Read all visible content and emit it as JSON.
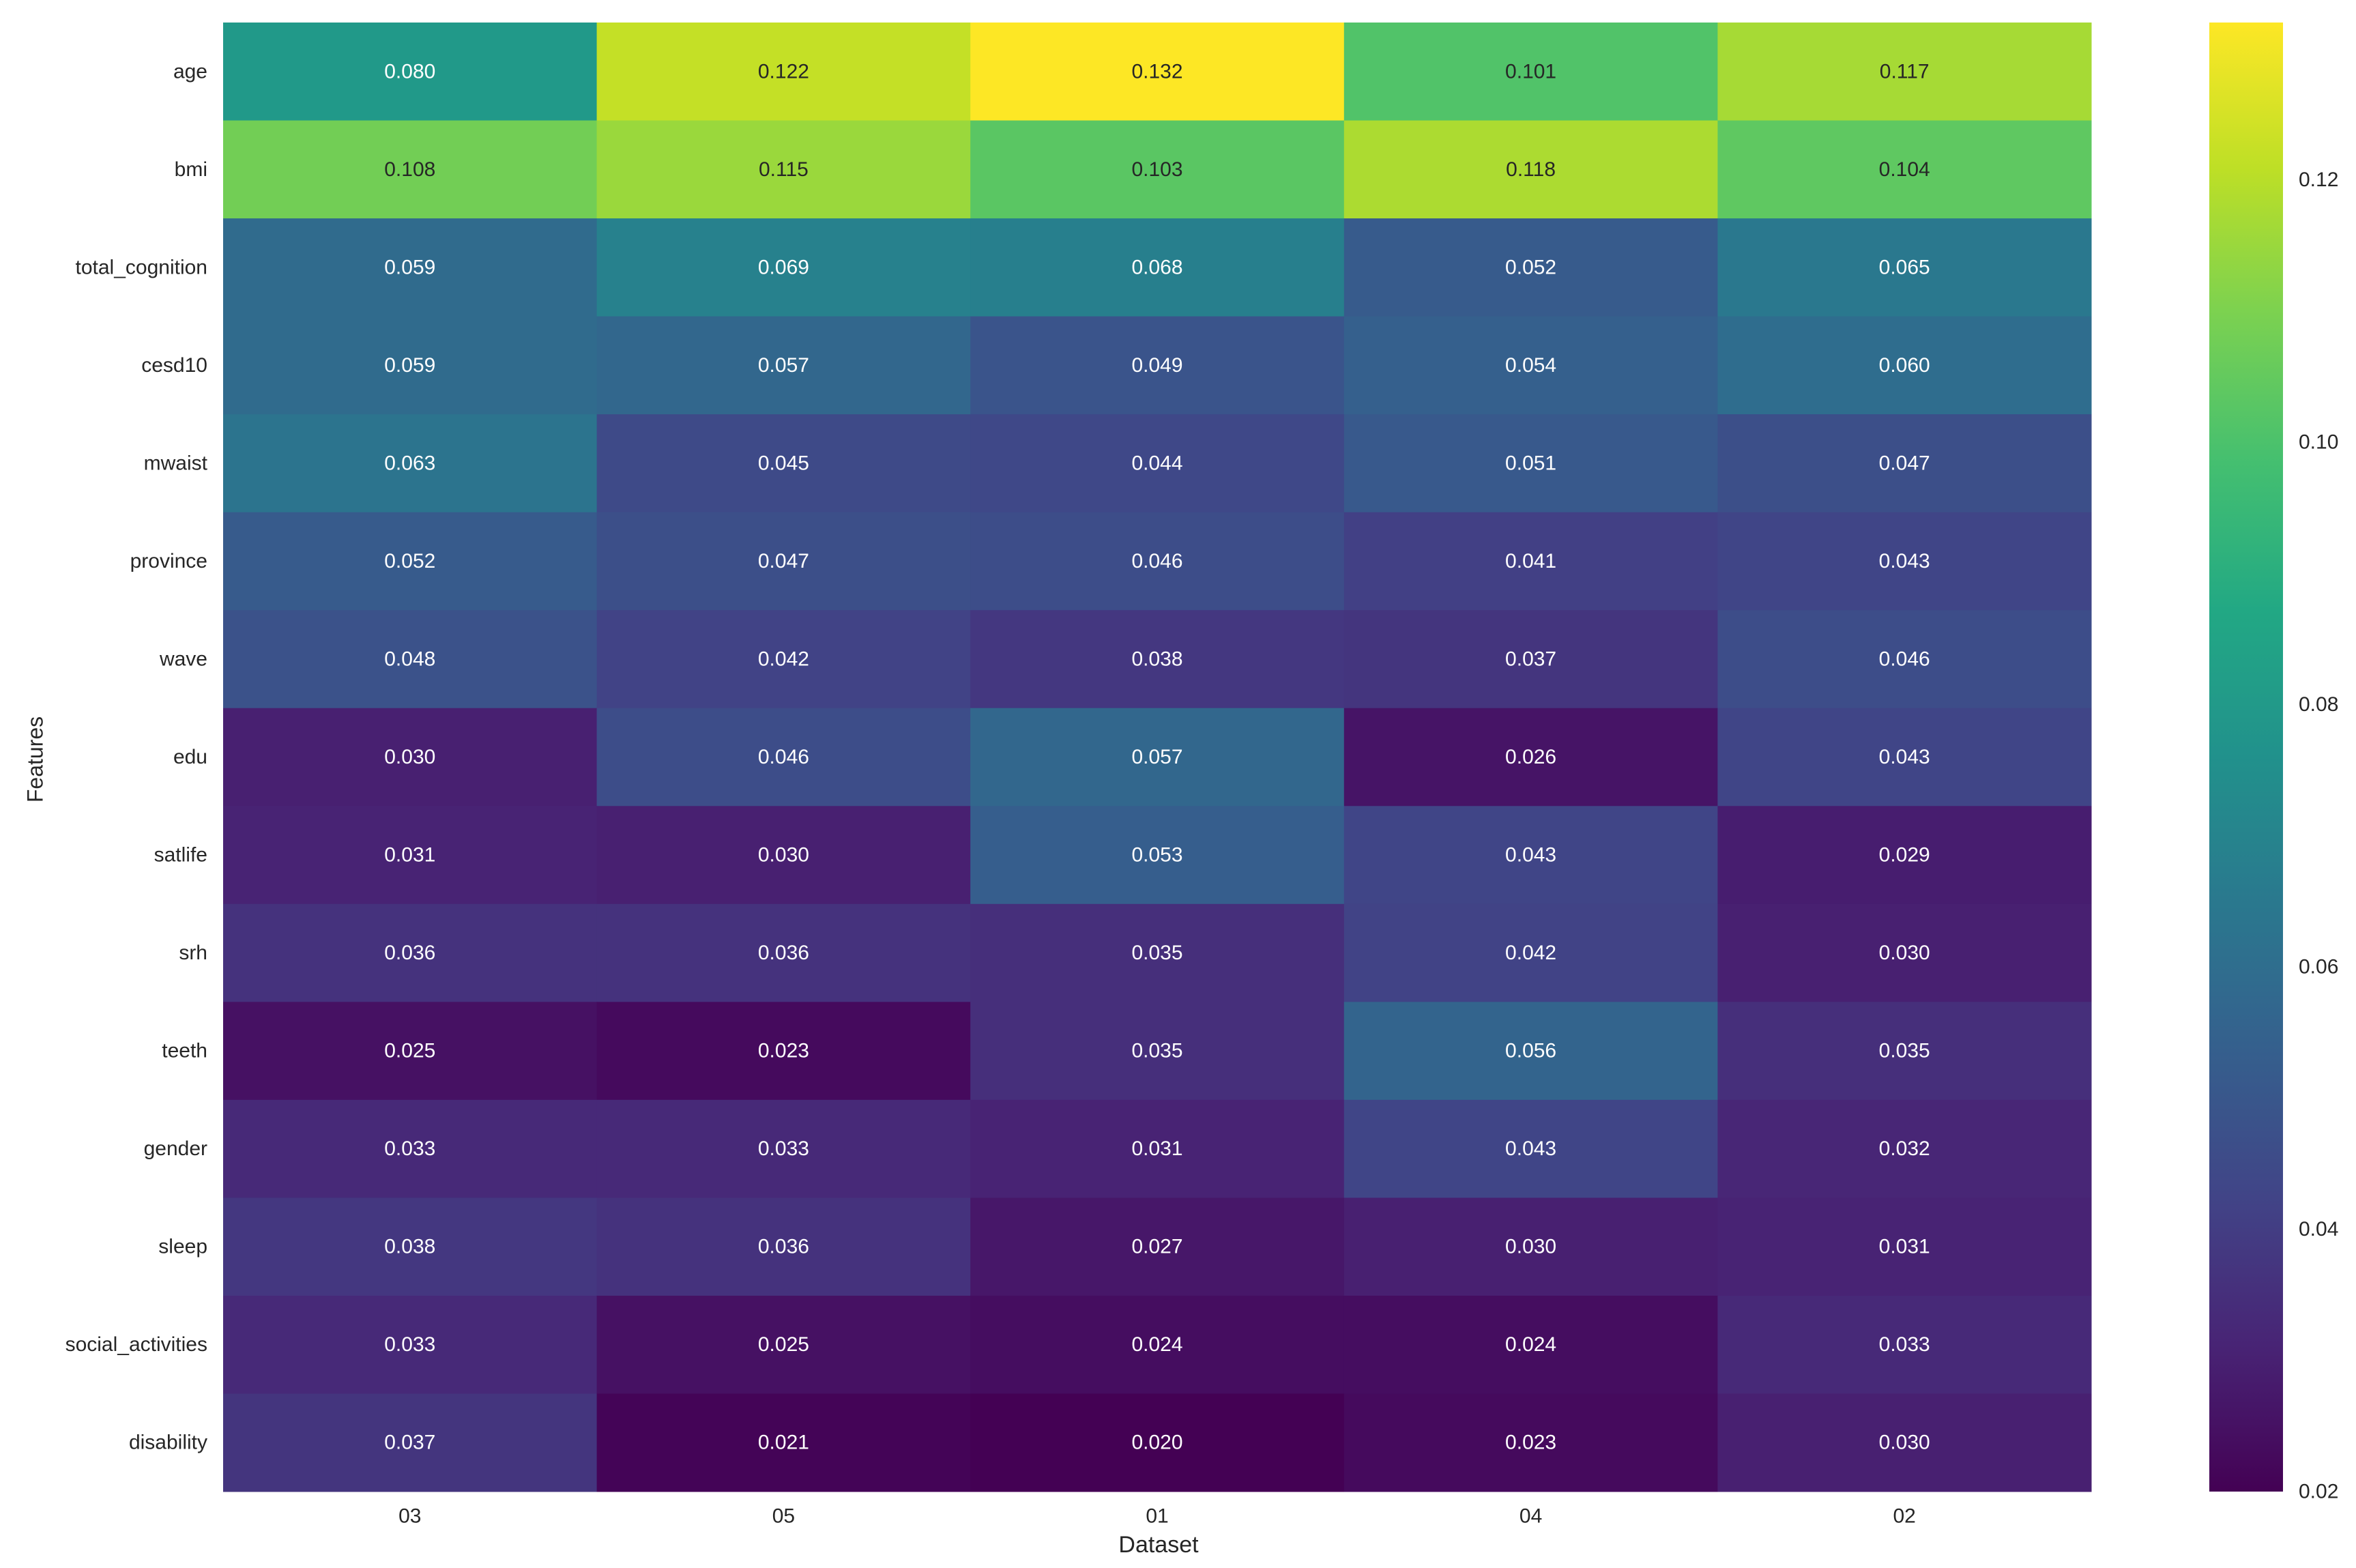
{
  "chart_data": {
    "type": "heatmap",
    "xlabel": "Dataset",
    "ylabel": "Features",
    "x_categories": [
      "03",
      "05",
      "01",
      "04",
      "02"
    ],
    "y_categories": [
      "age",
      "bmi",
      "total_cognition",
      "cesd10",
      "mwaist",
      "province",
      "wave",
      "edu",
      "satlife",
      "srh",
      "teeth",
      "gender",
      "sleep",
      "social_activities",
      "disability"
    ],
    "values": [
      [
        0.08,
        0.122,
        0.132,
        0.101,
        0.117
      ],
      [
        0.108,
        0.115,
        0.103,
        0.118,
        0.104
      ],
      [
        0.059,
        0.069,
        0.068,
        0.052,
        0.065
      ],
      [
        0.059,
        0.057,
        0.049,
        0.054,
        0.06
      ],
      [
        0.063,
        0.045,
        0.044,
        0.051,
        0.047
      ],
      [
        0.052,
        0.047,
        0.046,
        0.041,
        0.043
      ],
      [
        0.048,
        0.042,
        0.038,
        0.037,
        0.046
      ],
      [
        0.03,
        0.046,
        0.057,
        0.026,
        0.043
      ],
      [
        0.031,
        0.03,
        0.053,
        0.043,
        0.029
      ],
      [
        0.036,
        0.036,
        0.035,
        0.042,
        0.03
      ],
      [
        0.025,
        0.023,
        0.035,
        0.056,
        0.035
      ],
      [
        0.033,
        0.033,
        0.031,
        0.043,
        0.032
      ],
      [
        0.038,
        0.036,
        0.027,
        0.03,
        0.031
      ],
      [
        0.033,
        0.025,
        0.024,
        0.024,
        0.033
      ],
      [
        0.037,
        0.021,
        0.02,
        0.023,
        0.03
      ]
    ],
    "value_format": "3 decimals",
    "colormap": "viridis",
    "colorbar": {
      "range": [
        0.02,
        0.132
      ],
      "ticks": [
        0.02,
        0.04,
        0.06,
        0.08,
        0.1,
        0.12
      ],
      "tick_labels": [
        "0.02",
        "0.04",
        "0.06",
        "0.08",
        "0.10",
        "0.12"
      ]
    },
    "annotation_colors": {
      "dark_text": "#262626",
      "light_text": "#ffffff",
      "threshold": 0.095
    }
  }
}
